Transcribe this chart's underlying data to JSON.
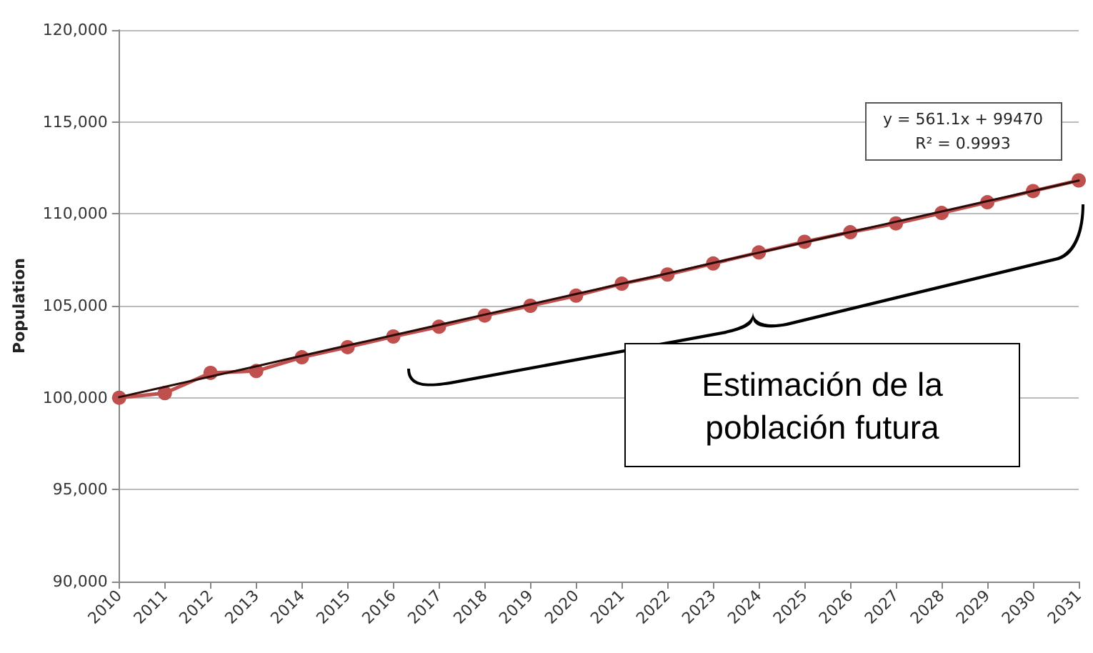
{
  "chart_data": {
    "type": "line",
    "ylabel": "Population",
    "categories": [
      "2010",
      "2011",
      "2012",
      "2013",
      "2014",
      "2015",
      "2016",
      "2017",
      "2018",
      "2019",
      "2020",
      "2021",
      "2022",
      "2023",
      "2024",
      "2025",
      "2026",
      "2027",
      "2028",
      "2029",
      "2030",
      "2031"
    ],
    "series": [
      {
        "color": "#c0504d",
        "marker": "circle",
        "values": [
          100000,
          100250,
          101350,
          101450,
          102200,
          102750,
          103330,
          103860,
          104470,
          105000,
          105550,
          106200,
          106700,
          107300,
          107900,
          108480,
          109000,
          109480,
          110050,
          110630,
          111240,
          111820
        ]
      },
      {
        "color": "#2b0a0a",
        "marker": "none",
        "values": [
          100030,
          100590,
          101150,
          101710,
          102280,
          102840,
          103400,
          103960,
          104520,
          105080,
          105640,
          106200,
          106760,
          107330,
          107890,
          108450,
          109010,
          109570,
          110130,
          110690,
          111250,
          111810
        ]
      }
    ],
    "ylim": [
      90000,
      120000
    ],
    "yticks": [
      {
        "value": 90000,
        "label": "90,000"
      },
      {
        "value": 95000,
        "label": "95,000"
      },
      {
        "value": 100000,
        "label": "100,000"
      },
      {
        "value": 105000,
        "label": "105,000"
      },
      {
        "value": 110000,
        "label": "110,000"
      },
      {
        "value": 115000,
        "label": "115,000"
      },
      {
        "value": 120000,
        "label": "120,000"
      }
    ],
    "grid": "y",
    "annotations": [
      "y = 561.1x + 99470",
      "R² = 0.9993",
      "Estimación de la población futura"
    ]
  }
}
